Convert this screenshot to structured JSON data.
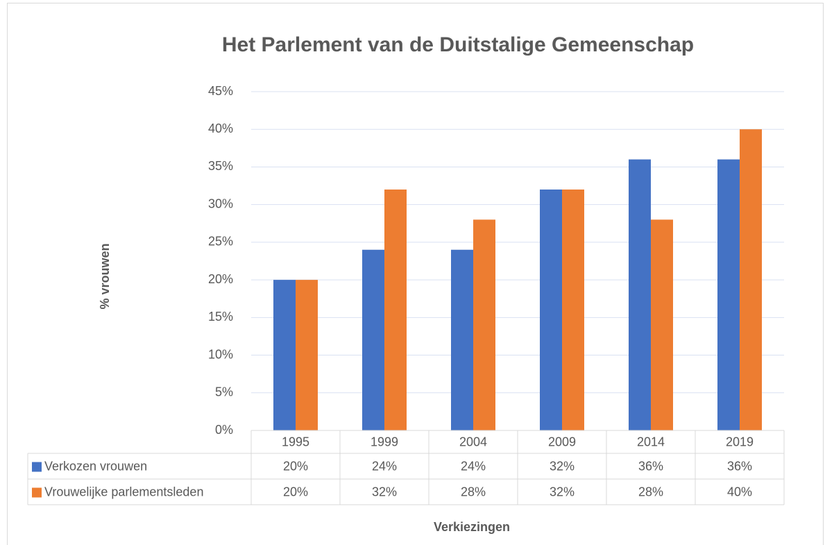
{
  "chart_data": {
    "type": "bar",
    "title": "Het Parlement van de Duitstalige Gemeenschap",
    "x_label": "Verkiezingen",
    "y_label": "% vrouwen",
    "categories": [
      "1995",
      "1999",
      "2004",
      "2009",
      "2014",
      "2019"
    ],
    "series": [
      {
        "name": "Verkozen vrouwen",
        "color": "#4472c4",
        "values": [
          20,
          24,
          24,
          32,
          36,
          36
        ],
        "value_labels": [
          "20%",
          "24%",
          "24%",
          "32%",
          "36%",
          "36%"
        ]
      },
      {
        "name": "Vrouwelijke parlementsleden",
        "color": "#ed7d31",
        "values": [
          20,
          32,
          28,
          32,
          28,
          40
        ],
        "value_labels": [
          "20%",
          "32%",
          "28%",
          "32%",
          "28%",
          "40%"
        ]
      }
    ],
    "ylim": [
      0,
      45
    ],
    "yticks": [
      {
        "value": 0,
        "label": "0%"
      },
      {
        "value": 5,
        "label": "5%"
      },
      {
        "value": 10,
        "label": "10%"
      },
      {
        "value": 15,
        "label": "15%"
      },
      {
        "value": 20,
        "label": "20%"
      },
      {
        "value": 25,
        "label": "25%"
      },
      {
        "value": 30,
        "label": "30%"
      },
      {
        "value": 35,
        "label": "35%"
      },
      {
        "value": 40,
        "label": "40%"
      },
      {
        "value": 45,
        "label": "45%"
      }
    ],
    "grid": true,
    "data_table": true
  }
}
